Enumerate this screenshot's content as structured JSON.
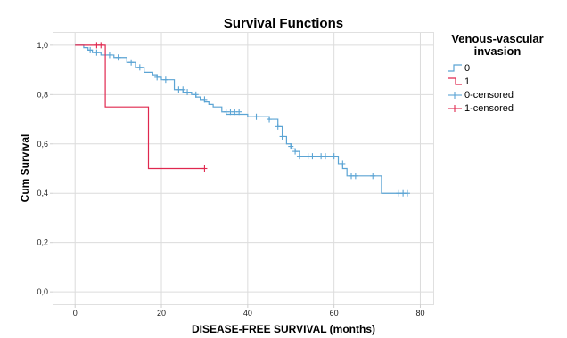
{
  "chart_data": {
    "type": "line",
    "title": "Survival Functions",
    "xlabel": "DISEASE-FREE SURVIVAL (months)",
    "ylabel": "Cum Survival",
    "xlim": [
      -5,
      83
    ],
    "ylim": [
      -0.05,
      1.05
    ],
    "xticks": [
      0,
      20,
      40,
      60,
      80
    ],
    "yticks": [
      0.0,
      0.2,
      0.4,
      0.6,
      0.8,
      1.0
    ],
    "xtick_labels": [
      "0",
      "20",
      "40",
      "60",
      "80"
    ],
    "ytick_labels": [
      "0,0",
      "0,2",
      "0,4",
      "0,6",
      "0,8",
      "1,0"
    ],
    "grid": true,
    "legend": {
      "title": "Venous-vascular invasion",
      "placement": "right",
      "entries": [
        "0",
        "1",
        "0-censored",
        "1-censored"
      ]
    },
    "series": [
      {
        "name": "0",
        "color": "#5ba4d4",
        "step": true,
        "x": [
          0,
          2,
          3,
          4,
          6,
          9,
          12,
          14,
          16,
          18,
          19,
          20,
          23,
          25,
          27,
          28,
          29,
          30,
          31,
          32,
          34,
          35,
          40,
          45,
          47,
          48,
          49,
          50,
          51,
          52,
          61,
          62,
          63,
          71,
          77
        ],
        "y": [
          1.0,
          0.99,
          0.98,
          0.97,
          0.96,
          0.95,
          0.93,
          0.91,
          0.89,
          0.88,
          0.87,
          0.86,
          0.82,
          0.81,
          0.8,
          0.79,
          0.78,
          0.77,
          0.76,
          0.75,
          0.73,
          0.72,
          0.71,
          0.7,
          0.67,
          0.63,
          0.6,
          0.58,
          0.57,
          0.55,
          0.52,
          0.5,
          0.47,
          0.4,
          0.4
        ],
        "censored": [
          [
            3.5,
            0.98
          ],
          [
            5,
            0.97
          ],
          [
            8,
            0.96
          ],
          [
            10,
            0.95
          ],
          [
            13,
            0.93
          ],
          [
            15,
            0.91
          ],
          [
            19,
            0.87
          ],
          [
            21,
            0.86
          ],
          [
            24,
            0.82
          ],
          [
            25,
            0.82
          ],
          [
            26,
            0.81
          ],
          [
            28,
            0.8
          ],
          [
            30,
            0.78
          ],
          [
            35,
            0.73
          ],
          [
            36,
            0.73
          ],
          [
            37,
            0.73
          ],
          [
            38,
            0.73
          ],
          [
            42,
            0.71
          ],
          [
            45,
            0.7
          ],
          [
            47,
            0.67
          ],
          [
            48,
            0.63
          ],
          [
            50,
            0.59
          ],
          [
            51,
            0.57
          ],
          [
            52,
            0.55
          ],
          [
            54,
            0.55
          ],
          [
            55,
            0.55
          ],
          [
            57,
            0.55
          ],
          [
            58,
            0.55
          ],
          [
            60,
            0.55
          ],
          [
            62,
            0.52
          ],
          [
            64,
            0.47
          ],
          [
            65,
            0.47
          ],
          [
            69,
            0.47
          ],
          [
            75,
            0.4
          ],
          [
            76,
            0.4
          ],
          [
            77,
            0.4
          ]
        ]
      },
      {
        "name": "1",
        "color": "#e0284f",
        "step": true,
        "x": [
          0,
          7,
          17,
          30
        ],
        "y": [
          1.0,
          0.75,
          0.5,
          0.5
        ],
        "censored": [
          [
            5,
            1.0
          ],
          [
            6,
            1.0
          ],
          [
            30,
            0.5
          ]
        ]
      }
    ]
  },
  "legend_colors": {
    "0": "#5ba4d4",
    "1": "#e0284f",
    "0-censored": "#5ba4d4",
    "1-censored": "#e0284f"
  }
}
